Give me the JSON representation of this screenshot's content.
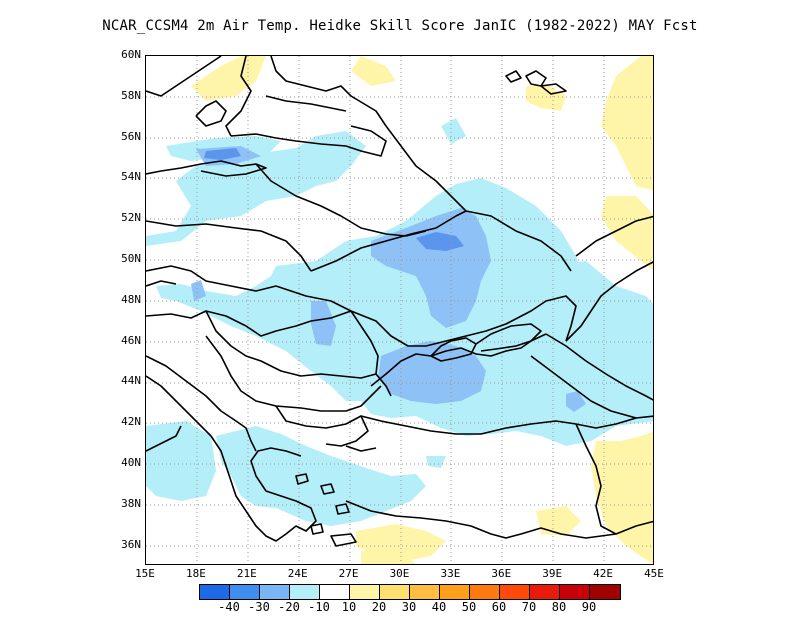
{
  "title": "NCAR_CCSM4  2m Air Temp. Heidke Skill Score JanIC (1982-2022) MAY Fcst",
  "map": {
    "lat_labels": [
      "60N",
      "58N",
      "56N",
      "54N",
      "52N",
      "50N",
      "48N",
      "46N",
      "44N",
      "42N",
      "40N",
      "38N",
      "36N"
    ],
    "lon_labels": [
      "15E",
      "18E",
      "21E",
      "24E",
      "27E",
      "30E",
      "33E",
      "36E",
      "39E",
      "42E",
      "45E"
    ],
    "lon_range": [
      15,
      45
    ],
    "lat_range": [
      35,
      60
    ],
    "grid": "dotted",
    "colors": {
      "light_blue": "#b4eef8",
      "mid_blue": "#8ec1f5",
      "deep_blue": "#5b95ee",
      "pale_yellow": "#fff5a8",
      "border": "#000000"
    }
  },
  "colorbar": {
    "colors": [
      "#1c6ae6",
      "#3e8ef0",
      "#78b6f5",
      "#b4eef8",
      "#ffffff",
      "#fff5a8",
      "#ffdf6f",
      "#ffbe42",
      "#ffa01a",
      "#ff7a0f",
      "#ff4a0a",
      "#e81a0a",
      "#c8000a",
      "#a00000"
    ],
    "labels": [
      "-40",
      "-30",
      "-20",
      "-10",
      "10",
      "20",
      "30",
      "40",
      "50",
      "60",
      "70",
      "80",
      "90"
    ]
  }
}
